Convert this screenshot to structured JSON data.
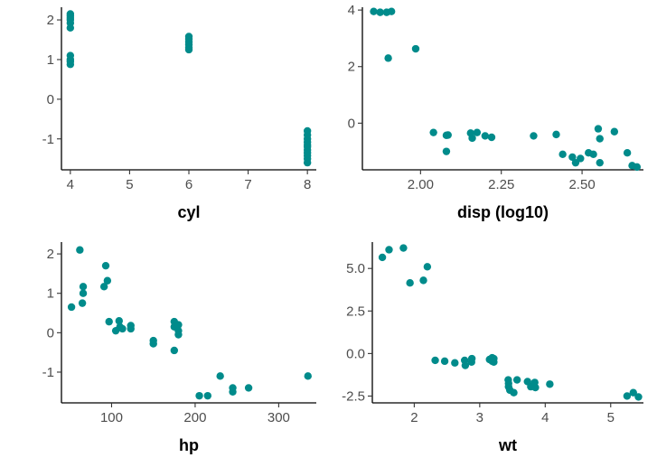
{
  "point_color": "#008B8B",
  "chart_data": [
    {
      "type": "scatter",
      "xlabel": "cyl",
      "ylabel": "",
      "xlim": [
        3.85,
        8.15
      ],
      "ylim": [
        -1.78,
        2.32
      ],
      "xticks": [
        4,
        5,
        6,
        7,
        8
      ],
      "xtick_labels": [
        "4",
        "5",
        "6",
        "7",
        "8"
      ],
      "yticks": [
        -1,
        0,
        1,
        2
      ],
      "ytick_labels": [
        "-1",
        "0",
        "1",
        "2"
      ],
      "points": [
        [
          4,
          2.15
        ],
        [
          4,
          2.1
        ],
        [
          4,
          2.05
        ],
        [
          4,
          2.0
        ],
        [
          4,
          1.92
        ],
        [
          4,
          1.8
        ],
        [
          4,
          1.1
        ],
        [
          4,
          1.0
        ],
        [
          4,
          0.95
        ],
        [
          4,
          0.88
        ],
        [
          6,
          1.58
        ],
        [
          6,
          1.52
        ],
        [
          6,
          1.45
        ],
        [
          6,
          1.38
        ],
        [
          6,
          1.3
        ],
        [
          6,
          1.25
        ],
        [
          8,
          -0.8
        ],
        [
          8,
          -0.9
        ],
        [
          8,
          -1.0
        ],
        [
          8,
          -1.08
        ],
        [
          8,
          -1.15
        ],
        [
          8,
          -1.2
        ],
        [
          8,
          -1.28
        ],
        [
          8,
          -1.35
        ],
        [
          8,
          -1.42
        ],
        [
          8,
          -1.5
        ],
        [
          8,
          -1.6
        ]
      ]
    },
    {
      "type": "scatter",
      "xlabel": "disp (log10)",
      "ylabel": "",
      "xlim": [
        1.82,
        2.69
      ],
      "ylim": [
        -1.65,
        4.1
      ],
      "xticks": [
        2.0,
        2.25,
        2.5
      ],
      "xtick_labels": [
        "2.00",
        "2.25",
        "2.50"
      ],
      "yticks": [
        0,
        2,
        4
      ],
      "ytick_labels": [
        "0",
        "2",
        "4"
      ],
      "points": [
        [
          1.855,
          3.95
        ],
        [
          1.875,
          3.92
        ],
        [
          1.895,
          3.92
        ],
        [
          1.91,
          3.95
        ],
        [
          1.9,
          2.3
        ],
        [
          1.985,
          2.63
        ],
        [
          2.04,
          -0.33
        ],
        [
          2.08,
          -0.43
        ],
        [
          2.085,
          -0.42
        ],
        [
          2.08,
          -1.0
        ],
        [
          2.155,
          -0.35
        ],
        [
          2.16,
          -0.53
        ],
        [
          2.175,
          -0.33
        ],
        [
          2.2,
          -0.45
        ],
        [
          2.22,
          -0.5
        ],
        [
          2.35,
          -0.45
        ],
        [
          2.42,
          -0.4
        ],
        [
          2.44,
          -1.1
        ],
        [
          2.47,
          -1.2
        ],
        [
          2.48,
          -1.4
        ],
        [
          2.495,
          -1.25
        ],
        [
          2.52,
          -1.05
        ],
        [
          2.535,
          -1.1
        ],
        [
          2.55,
          -0.2
        ],
        [
          2.555,
          -0.55
        ],
        [
          2.555,
          -1.4
        ],
        [
          2.6,
          -0.3
        ],
        [
          2.64,
          -1.05
        ],
        [
          2.655,
          -1.5
        ],
        [
          2.67,
          -1.55
        ]
      ]
    },
    {
      "type": "scatter",
      "xlabel": "hp",
      "ylabel": "",
      "xlim": [
        40,
        345
      ],
      "ylim": [
        -1.78,
        2.3
      ],
      "xticks": [
        100,
        200,
        300
      ],
      "xtick_labels": [
        "100",
        "200",
        "300"
      ],
      "yticks": [
        -1,
        0,
        1,
        2
      ],
      "ytick_labels": [
        "-1",
        "0",
        "1",
        "2"
      ],
      "points": [
        [
          52,
          0.65
        ],
        [
          62,
          2.1
        ],
        [
          65,
          0.75
        ],
        [
          66,
          1.0
        ],
        [
          66,
          1.17
        ],
        [
          91,
          1.17
        ],
        [
          93,
          1.7
        ],
        [
          95,
          1.32
        ],
        [
          97,
          0.28
        ],
        [
          105,
          0.05
        ],
        [
          109,
          0.3
        ],
        [
          110,
          0.15
        ],
        [
          113,
          0.1
        ],
        [
          123,
          0.18
        ],
        [
          123,
          0.1
        ],
        [
          150,
          -0.2
        ],
        [
          150,
          -0.28
        ],
        [
          175,
          0.28
        ],
        [
          175,
          0.15
        ],
        [
          175,
          -0.45
        ],
        [
          180,
          0.2
        ],
        [
          180,
          0.05
        ],
        [
          180,
          -0.05
        ],
        [
          205,
          -1.6
        ],
        [
          215,
          -1.6
        ],
        [
          230,
          -1.1
        ],
        [
          245,
          -1.4
        ],
        [
          245,
          -1.5
        ],
        [
          264,
          -1.4
        ],
        [
          335,
          -1.1
        ]
      ]
    },
    {
      "type": "scatter",
      "xlabel": "wt",
      "ylabel": "",
      "xlim": [
        1.36,
        5.5
      ],
      "ylim": [
        -2.9,
        6.55
      ],
      "xticks": [
        2,
        3,
        4,
        5
      ],
      "xtick_labels": [
        "2",
        "3",
        "4",
        "5"
      ],
      "yticks": [
        -2.5,
        0.0,
        2.5,
        5.0
      ],
      "ytick_labels": [
        "-2.5",
        "0.0",
        "2.5",
        "5.0"
      ],
      "points": [
        [
          1.513,
          5.65
        ],
        [
          1.615,
          6.1
        ],
        [
          1.835,
          6.2
        ],
        [
          1.935,
          4.15
        ],
        [
          2.14,
          4.3
        ],
        [
          2.2,
          5.1
        ],
        [
          2.32,
          -0.4
        ],
        [
          2.465,
          -0.45
        ],
        [
          2.62,
          -0.55
        ],
        [
          2.77,
          -0.4
        ],
        [
          2.78,
          -0.7
        ],
        [
          2.875,
          -0.5
        ],
        [
          2.88,
          -0.3
        ],
        [
          3.15,
          -0.35
        ],
        [
          3.19,
          -0.25
        ],
        [
          3.215,
          -0.3
        ],
        [
          3.215,
          -0.5
        ],
        [
          3.19,
          -0.45
        ],
        [
          3.435,
          -1.55
        ],
        [
          3.44,
          -1.75
        ],
        [
          3.44,
          -1.95
        ],
        [
          3.46,
          -2.15
        ],
        [
          3.52,
          -2.3
        ],
        [
          3.57,
          -1.55
        ],
        [
          3.73,
          -1.65
        ],
        [
          3.78,
          -1.95
        ],
        [
          3.84,
          -1.7
        ],
        [
          3.85,
          -2.0
        ],
        [
          4.07,
          -1.8
        ],
        [
          5.25,
          -2.5
        ],
        [
          5.345,
          -2.3
        ],
        [
          5.424,
          -2.55
        ]
      ]
    }
  ]
}
